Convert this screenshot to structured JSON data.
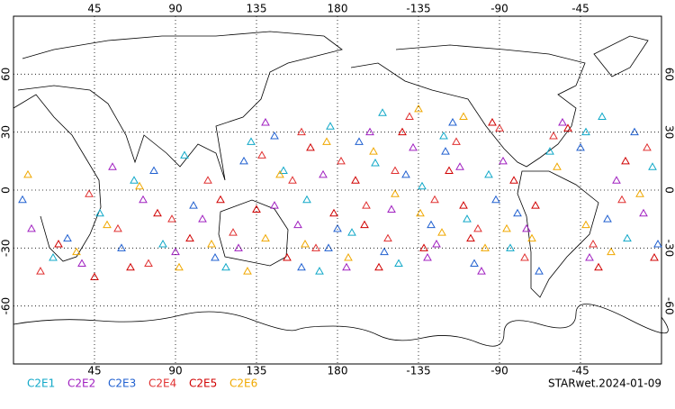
{
  "chart_data": {
    "type": "scatter",
    "xlim": [
      0,
      360
    ],
    "ylim": [
      -90,
      90
    ],
    "xticks": [
      45,
      90,
      135,
      180,
      {
        "value": 225,
        "label": "-135"
      },
      {
        "value": 270,
        "label": "-90"
      },
      {
        "value": 315,
        "label": "-45"
      }
    ],
    "yticks": [
      -60,
      -30,
      0,
      30,
      60
    ],
    "grid": true,
    "stamp": "STARwet.2024-01-09",
    "series": [
      {
        "name": "C2E1",
        "color": "#10a8c8",
        "x": [
          22,
          48,
          67,
          83,
          95,
          118,
          132,
          150,
          163,
          176,
          188,
          201,
          214,
          227,
          239,
          252,
          264,
          276,
          298,
          318,
          327,
          341,
          355,
          170,
          205
        ],
        "values": [
          -35,
          -12,
          5,
          -28,
          18,
          -40,
          25,
          10,
          -5,
          33,
          -22,
          14,
          -38,
          2,
          28,
          -15,
          8,
          -30,
          20,
          30,
          38,
          -25,
          12,
          -42,
          40
        ]
      },
      {
        "name": "C2E2",
        "color": "#a020c0",
        "x": [
          10,
          38,
          55,
          72,
          90,
          105,
          125,
          140,
          158,
          172,
          185,
          198,
          210,
          222,
          235,
          248,
          260,
          272,
          285,
          305,
          320,
          335,
          350,
          145,
          230
        ],
        "values": [
          -20,
          -38,
          12,
          -5,
          -32,
          -15,
          -30,
          35,
          -18,
          8,
          -40,
          30,
          -10,
          22,
          -28,
          12,
          -42,
          15,
          -20,
          35,
          -35,
          5,
          -12,
          -8,
          -35
        ]
      },
      {
        "name": "C2E3",
        "color": "#2060d0",
        "x": [
          5,
          30,
          60,
          78,
          100,
          112,
          128,
          145,
          160,
          180,
          192,
          206,
          218,
          232,
          244,
          256,
          268,
          280,
          292,
          315,
          330,
          345,
          358,
          240,
          175
        ],
        "values": [
          -5,
          -25,
          -30,
          10,
          -8,
          -35,
          15,
          28,
          -40,
          -20,
          25,
          -32,
          8,
          -18,
          35,
          -38,
          -5,
          -12,
          -42,
          22,
          -15,
          30,
          -28,
          20,
          -30
        ]
      },
      {
        "name": "C2E4",
        "color": "#e03030",
        "x": [
          15,
          42,
          58,
          75,
          88,
          108,
          122,
          138,
          155,
          168,
          182,
          196,
          208,
          220,
          234,
          246,
          258,
          270,
          284,
          300,
          322,
          338,
          352,
          212,
          160
        ],
        "values": [
          -42,
          -2,
          -20,
          -38,
          -15,
          5,
          -22,
          18,
          5,
          -30,
          15,
          -8,
          -25,
          38,
          -5,
          25,
          -20,
          32,
          -35,
          28,
          -28,
          -5,
          22,
          10,
          30
        ]
      },
      {
        "name": "C2E5",
        "color": "#d00000",
        "x": [
          25,
          45,
          65,
          80,
          98,
          115,
          135,
          152,
          165,
          178,
          190,
          203,
          216,
          228,
          242,
          254,
          266,
          278,
          290,
          308,
          325,
          340,
          356,
          195,
          250
        ],
        "values": [
          -28,
          -45,
          -40,
          -12,
          -25,
          -5,
          -10,
          -35,
          22,
          -12,
          5,
          -40,
          30,
          -30,
          10,
          -25,
          35,
          5,
          -8,
          32,
          -40,
          15,
          -35,
          -18,
          -8
        ]
      },
      {
        "name": "C2E6",
        "color": "#f0a800",
        "x": [
          8,
          35,
          52,
          70,
          92,
          110,
          130,
          148,
          162,
          174,
          186,
          200,
          212,
          226,
          238,
          250,
          262,
          274,
          288,
          302,
          318,
          332,
          348,
          225,
          140
        ],
        "values": [
          8,
          -32,
          -18,
          2,
          -40,
          -28,
          -42,
          8,
          -28,
          25,
          -35,
          20,
          -2,
          -12,
          -22,
          38,
          -30,
          -20,
          -25,
          12,
          -18,
          -32,
          -2,
          42,
          -25
        ]
      }
    ]
  }
}
